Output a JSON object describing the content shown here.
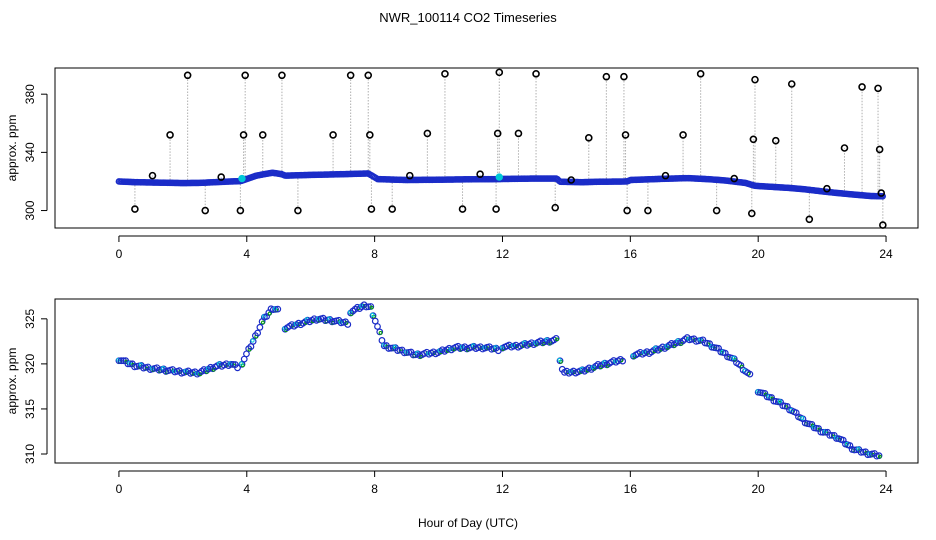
{
  "title": "NWR_100114  CO2 Timeseries",
  "xlabel": "Hour of Day (UTC)",
  "colors": {
    "primary": "#1b2cc8",
    "outlier": "#000000",
    "accent": "#00c8d8",
    "fit": "#cc0000",
    "green": "#00a000",
    "stem": "#b0b0b0"
  },
  "chart_data": [
    {
      "type": "scatter",
      "panel": "top",
      "ylabel": "approx. ppm",
      "xlim": [
        -2,
        25
      ],
      "ylim": [
        288,
        398
      ],
      "xticks": [
        "0",
        "4",
        "8",
        "12",
        "16",
        "20",
        "24"
      ],
      "yticks": [
        "300",
        "340",
        "380"
      ],
      "baseline": [
        [
          0,
          320
        ],
        [
          0.5,
          319.5
        ],
        [
          1,
          319.3
        ],
        [
          1.5,
          319.1
        ],
        [
          2,
          318.9
        ],
        [
          2.5,
          319
        ],
        [
          3,
          319.5
        ],
        [
          3.5,
          320
        ],
        [
          3.8,
          320.2
        ],
        [
          4.3,
          324
        ],
        [
          4.8,
          326
        ],
        [
          5.1,
          325
        ],
        [
          5.2,
          324
        ],
        [
          6,
          324.5
        ],
        [
          7,
          325
        ],
        [
          7.8,
          325.5
        ],
        [
          8.1,
          321.6
        ],
        [
          9,
          321
        ],
        [
          10,
          321.2
        ],
        [
          11,
          321.5
        ],
        [
          11.8,
          321.6
        ],
        [
          12,
          321.7
        ],
        [
          13,
          322
        ],
        [
          13.7,
          322
        ],
        [
          13.8,
          319.8
        ],
        [
          14.5,
          319.5
        ],
        [
          15,
          319.8
        ],
        [
          15.9,
          320
        ],
        [
          16,
          321
        ],
        [
          17,
          321.8
        ],
        [
          17.8,
          322.3
        ],
        [
          18.5,
          321.5
        ],
        [
          19,
          320.6
        ],
        [
          19.6,
          319
        ],
        [
          19.9,
          317
        ],
        [
          20.5,
          316.2
        ],
        [
          21,
          315.5
        ],
        [
          21.5,
          314.5
        ],
        [
          22,
          313.2
        ],
        [
          22.5,
          312
        ],
        [
          23,
          311
        ],
        [
          23.5,
          310
        ],
        [
          23.9,
          309.8
        ]
      ],
      "outliers": [
        {
          "x": 0.5,
          "y": 301
        },
        {
          "x": 1.05,
          "y": 324
        },
        {
          "x": 1.6,
          "y": 352
        },
        {
          "x": 2.15,
          "y": 393
        },
        {
          "x": 2.7,
          "y": 300
        },
        {
          "x": 3.2,
          "y": 323
        },
        {
          "x": 3.8,
          "y": 300
        },
        {
          "x": 3.9,
          "y": 352
        },
        {
          "x": 3.95,
          "y": 393
        },
        {
          "x": 4.5,
          "y": 352
        },
        {
          "x": 5.1,
          "y": 393
        },
        {
          "x": 5.6,
          "y": 300
        },
        {
          "x": 6.7,
          "y": 352
        },
        {
          "x": 7.25,
          "y": 393
        },
        {
          "x": 7.8,
          "y": 393
        },
        {
          "x": 7.85,
          "y": 352
        },
        {
          "x": 7.9,
          "y": 301
        },
        {
          "x": 8.55,
          "y": 301
        },
        {
          "x": 9.1,
          "y": 324
        },
        {
          "x": 9.65,
          "y": 353
        },
        {
          "x": 10.2,
          "y": 394
        },
        {
          "x": 10.75,
          "y": 301
        },
        {
          "x": 11.3,
          "y": 325
        },
        {
          "x": 11.8,
          "y": 301
        },
        {
          "x": 11.85,
          "y": 353
        },
        {
          "x": 11.9,
          "y": 395
        },
        {
          "x": 12.5,
          "y": 353
        },
        {
          "x": 13.05,
          "y": 394
        },
        {
          "x": 13.65,
          "y": 302
        },
        {
          "x": 14.15,
          "y": 321
        },
        {
          "x": 14.7,
          "y": 350
        },
        {
          "x": 15.25,
          "y": 392
        },
        {
          "x": 15.8,
          "y": 392
        },
        {
          "x": 15.85,
          "y": 352
        },
        {
          "x": 15.9,
          "y": 300
        },
        {
          "x": 16.55,
          "y": 300
        },
        {
          "x": 17.1,
          "y": 324
        },
        {
          "x": 17.65,
          "y": 352
        },
        {
          "x": 18.2,
          "y": 394
        },
        {
          "x": 18.7,
          "y": 300
        },
        {
          "x": 19.25,
          "y": 322
        },
        {
          "x": 19.8,
          "y": 298
        },
        {
          "x": 19.85,
          "y": 349
        },
        {
          "x": 19.9,
          "y": 390
        },
        {
          "x": 20.55,
          "y": 348
        },
        {
          "x": 21.05,
          "y": 387
        },
        {
          "x": 21.6,
          "y": 294
        },
        {
          "x": 22.15,
          "y": 315
        },
        {
          "x": 22.7,
          "y": 343
        },
        {
          "x": 23.25,
          "y": 385
        },
        {
          "x": 23.75,
          "y": 384
        },
        {
          "x": 23.8,
          "y": 342
        },
        {
          "x": 23.85,
          "y": 312
        },
        {
          "x": 23.9,
          "y": 290
        }
      ]
    },
    {
      "type": "scatter",
      "panel": "bottom",
      "ylabel": "approx. ppm",
      "xlim": [
        -2,
        25
      ],
      "ylim": [
        309,
        327.2
      ],
      "xticks": [
        "0",
        "4",
        "8",
        "12",
        "16",
        "20",
        "24"
      ],
      "yticks": [
        "310",
        "315",
        "320",
        "325"
      ],
      "segments": [
        [
          [
            0,
            320.5
          ],
          [
            0.5,
            319.8
          ],
          [
            1,
            319.5
          ],
          [
            1.5,
            319.3
          ],
          [
            2,
            319.1
          ],
          [
            2.5,
            319
          ],
          [
            3,
            319.7
          ],
          [
            3.5,
            320
          ],
          [
            3.75,
            319.6
          ]
        ],
        [
          [
            3.85,
            320.1
          ],
          [
            4.2,
            322.5
          ],
          [
            4.5,
            324.8
          ],
          [
            4.8,
            326.2
          ],
          [
            5.0,
            326
          ]
        ],
        [
          [
            5.2,
            324
          ],
          [
            5.7,
            324.5
          ],
          [
            6.2,
            325
          ],
          [
            6.7,
            324.8
          ],
          [
            7.2,
            324.5
          ]
        ],
        [
          [
            7.25,
            325.8
          ],
          [
            7.7,
            326.5
          ],
          [
            7.9,
            326.3
          ]
        ],
        [
          [
            7.95,
            325.5
          ],
          [
            8.3,
            322
          ],
          [
            8.8,
            321.5
          ],
          [
            9.3,
            321
          ],
          [
            10,
            321.3
          ],
          [
            10.5,
            321.8
          ],
          [
            11,
            321.8
          ],
          [
            11.5,
            321.8
          ],
          [
            11.9,
            321.6
          ]
        ],
        [
          [
            12.0,
            321.9
          ],
          [
            12.5,
            322
          ],
          [
            13,
            322.3
          ],
          [
            13.6,
            322.6
          ],
          [
            13.7,
            322.7
          ]
        ],
        [
          [
            13.8,
            320.5
          ],
          [
            13.9,
            319
          ],
          [
            14.5,
            319.2
          ],
          [
            15,
            319.8
          ],
          [
            15.8,
            320.5
          ]
        ],
        [
          [
            16.1,
            321
          ],
          [
            16.6,
            321.3
          ],
          [
            17.2,
            322
          ],
          [
            17.8,
            322.8
          ],
          [
            18.3,
            322.5
          ],
          [
            18.8,
            321.5
          ],
          [
            19.3,
            320.3
          ],
          [
            19.8,
            318.5
          ]
        ],
        [
          [
            20.0,
            317
          ],
          [
            20.5,
            316
          ],
          [
            21,
            315
          ],
          [
            21.5,
            313.5
          ],
          [
            22,
            312.5
          ],
          [
            22.5,
            311.8
          ],
          [
            23,
            310.5
          ],
          [
            23.5,
            310
          ],
          [
            23.8,
            309.8
          ]
        ]
      ]
    }
  ]
}
